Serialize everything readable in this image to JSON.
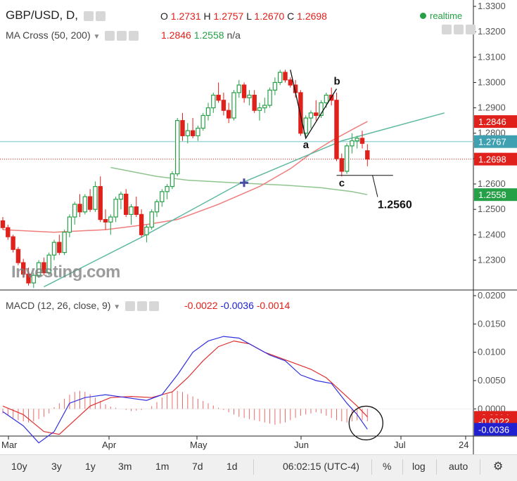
{
  "header": {
    "symbol": "GBP/USD, D,",
    "o_label": "O",
    "o": "1.2731",
    "h_label": "H",
    "h": "1.2757",
    "l_label": "L",
    "l": "1.2670",
    "c_label": "C",
    "c": "1.2698",
    "realtime": "realtime",
    "ma_label": "MA Cross (50, 200)",
    "ma50": "1.2846",
    "ma200": "1.2558",
    "ma_na": "n/a",
    "macd_label": "MACD (12, 26, close, 9)",
    "macd_hist": "-0.0022",
    "macd_line": "-0.0036",
    "macd_signal": "-0.0014"
  },
  "watermark": "Investing.com",
  "annotations": {
    "a": "a",
    "b": "b",
    "c": "c",
    "level": "1.2560"
  },
  "bottom": {
    "ranges": [
      "10y",
      "3y",
      "1y",
      "3m",
      "1m",
      "7d",
      "1d"
    ],
    "time": "06:02:15 (UTC-4)",
    "pct": "%",
    "log": "log",
    "auto": "auto"
  },
  "colors": {
    "up": "#26a046",
    "down": "#e0201b",
    "ma50": "#f07d7d",
    "ma200": "#90c490",
    "trend": "#5fb9a0",
    "macd": "#3030e0",
    "signal": "#e03030",
    "hline": "#9fd3da"
  },
  "chart_data": [
    {
      "type": "candlestick",
      "title": "GBP/USD, D",
      "x_ticks": [
        "Mar",
        "Apr",
        "May",
        "Jun",
        "Jul",
        "24"
      ],
      "y_ticks": [
        "1.3300",
        "1.3200",
        "1.3100",
        "1.3000",
        "1.2900",
        "1.2800",
        "1.2700",
        "1.2600",
        "1.2500",
        "1.2400",
        "1.2300"
      ],
      "ylim": [
        1.2185,
        1.3325
      ],
      "candles": [
        [
          1.2455,
          1.247,
          1.242,
          1.2428
        ],
        [
          1.2428,
          1.244,
          1.238,
          1.2392
        ],
        [
          1.2392,
          1.24,
          1.233,
          1.2342
        ],
        [
          1.2342,
          1.2352,
          1.228,
          1.229
        ],
        [
          1.229,
          1.2305,
          1.223,
          1.2245
        ],
        [
          1.2245,
          1.227,
          1.22,
          1.221
        ],
        [
          1.221,
          1.225,
          1.219,
          1.224
        ],
        [
          1.224,
          1.23,
          1.223,
          1.229
        ],
        [
          1.229,
          1.231,
          1.224,
          1.225
        ],
        [
          1.225,
          1.233,
          1.224,
          1.232
        ],
        [
          1.232,
          1.238,
          1.23,
          1.237
        ],
        [
          1.237,
          1.24,
          1.232,
          1.233
        ],
        [
          1.233,
          1.242,
          1.232,
          1.241
        ],
        [
          1.241,
          1.248,
          1.239,
          1.247
        ],
        [
          1.247,
          1.253,
          1.244,
          1.252
        ],
        [
          1.252,
          1.256,
          1.247,
          1.249
        ],
        [
          1.249,
          1.256,
          1.248,
          1.255
        ],
        [
          1.255,
          1.258,
          1.249,
          1.25
        ],
        [
          1.25,
          1.261,
          1.249,
          1.259
        ],
        [
          1.259,
          1.263,
          1.245,
          1.246
        ],
        [
          1.246,
          1.25,
          1.242,
          1.245
        ],
        [
          1.245,
          1.248,
          1.24,
          1.247
        ],
        [
          1.247,
          1.255,
          1.245,
          1.254
        ],
        [
          1.254,
          1.257,
          1.25,
          1.256
        ],
        [
          1.256,
          1.258,
          1.247,
          1.248
        ],
        [
          1.248,
          1.252,
          1.244,
          1.251
        ],
        [
          1.251,
          1.255,
          1.247,
          1.248
        ],
        [
          1.248,
          1.25,
          1.239,
          1.24
        ],
        [
          1.24,
          1.244,
          1.237,
          1.243
        ],
        [
          1.243,
          1.25,
          1.242,
          1.249
        ],
        [
          1.249,
          1.254,
          1.247,
          1.253
        ],
        [
          1.253,
          1.258,
          1.251,
          1.257
        ],
        [
          1.257,
          1.26,
          1.254,
          1.259
        ],
        [
          1.259,
          1.265,
          1.258,
          1.264
        ],
        [
          1.264,
          1.286,
          1.263,
          1.285
        ],
        [
          1.285,
          1.288,
          1.277,
          1.279
        ],
        [
          1.279,
          1.284,
          1.276,
          1.281
        ],
        [
          1.281,
          1.286,
          1.278,
          1.279
        ],
        [
          1.279,
          1.283,
          1.277,
          1.282
        ],
        [
          1.282,
          1.288,
          1.281,
          1.287
        ],
        [
          1.287,
          1.292,
          1.285,
          1.29
        ],
        [
          1.29,
          1.296,
          1.288,
          1.295
        ],
        [
          1.295,
          1.3,
          1.292,
          1.293
        ],
        [
          1.293,
          1.296,
          1.287,
          1.289
        ],
        [
          1.289,
          1.292,
          1.284,
          1.286
        ],
        [
          1.286,
          1.297,
          1.285,
          1.296
        ],
        [
          1.296,
          1.301,
          1.294,
          1.299
        ],
        [
          1.299,
          1.3,
          1.292,
          1.294
        ],
        [
          1.294,
          1.297,
          1.291,
          1.295
        ],
        [
          1.295,
          1.297,
          1.288,
          1.289
        ],
        [
          1.289,
          1.292,
          1.285,
          1.29
        ],
        [
          1.29,
          1.294,
          1.288,
          1.291
        ],
        [
          1.291,
          1.298,
          1.29,
          1.297
        ],
        [
          1.297,
          1.302,
          1.295,
          1.3
        ],
        [
          1.3,
          1.305,
          1.299,
          1.304
        ],
        [
          1.304,
          1.305,
          1.3,
          1.301
        ],
        [
          1.301,
          1.302,
          1.298,
          1.299
        ],
        [
          1.299,
          1.301,
          1.294,
          1.296
        ],
        [
          1.296,
          1.297,
          1.279,
          1.28
        ],
        [
          1.28,
          1.287,
          1.278,
          1.286
        ],
        [
          1.286,
          1.289,
          1.282,
          1.288
        ],
        [
          1.288,
          1.293,
          1.285,
          1.287
        ],
        [
          1.287,
          1.293,
          1.286,
          1.292
        ],
        [
          1.292,
          1.296,
          1.29,
          1.295
        ],
        [
          1.295,
          1.298,
          1.291,
          1.293
        ],
        [
          1.293,
          1.296,
          1.269,
          1.27
        ],
        [
          1.27,
          1.272,
          1.263,
          1.265
        ],
        [
          1.265,
          1.276,
          1.264,
          1.275
        ],
        [
          1.275,
          1.28,
          1.272,
          1.277
        ],
        [
          1.277,
          1.279,
          1.274,
          1.278
        ],
        [
          1.278,
          1.281,
          1.274,
          1.276
        ],
        [
          1.2731,
          1.2757,
          1.267,
          1.2698
        ]
      ],
      "ma50": [
        [
          0,
          1.242
        ],
        [
          10,
          1.241
        ],
        [
          20,
          1.242
        ],
        [
          28,
          1.244
        ],
        [
          34,
          1.246
        ],
        [
          42,
          1.252
        ],
        [
          50,
          1.259
        ],
        [
          56,
          1.266
        ],
        [
          60,
          1.272
        ],
        [
          64,
          1.277
        ],
        [
          69,
          1.2825
        ],
        [
          71,
          1.2846
        ]
      ],
      "ma200": [
        [
          21,
          1.2665
        ],
        [
          30,
          1.263
        ],
        [
          36,
          1.2615
        ],
        [
          45,
          1.2605
        ],
        [
          55,
          1.2595
        ],
        [
          62,
          1.2585
        ],
        [
          68,
          1.257
        ],
        [
          71,
          1.2558
        ]
      ],
      "trendline": [
        [
          8,
          1.2195
        ],
        [
          27,
          1.239
        ],
        [
          46,
          1.26
        ],
        [
          66,
          1.277
        ],
        [
          86,
          1.288
        ]
      ],
      "hlines": [
        {
          "value": 1.2767
        },
        {
          "value": 1.2698,
          "style": "dotted"
        }
      ],
      "support_level": 1.256,
      "price_labels": [
        {
          "value": 1.2846,
          "text": "1.2846",
          "color": "#e0201b"
        },
        {
          "value": 1.2767,
          "text": "1.2767",
          "color": "#3ea0b0"
        },
        {
          "value": 1.2698,
          "text": "1.2698",
          "color": "#e0201b"
        },
        {
          "value": 1.2558,
          "text": "1.2558",
          "color": "#26a046"
        }
      ]
    },
    {
      "type": "line",
      "title": "MACD (12, 26, close, 9)",
      "y_ticks": [
        "0.0200",
        "0.0150",
        "0.0100",
        "0.0050",
        "0.0000"
      ],
      "ylim": [
        -0.0048,
        0.021
      ],
      "series": [
        {
          "name": "MACD",
          "points": [
            [
              0,
              -0.0005
            ],
            [
              4,
              -0.003
            ],
            [
              7,
              -0.006
            ],
            [
              10,
              -0.004
            ],
            [
              13,
              0.001
            ],
            [
              16,
              0.002
            ],
            [
              20,
              0.0025
            ],
            [
              24,
              0.002
            ],
            [
              28,
              0.0015
            ],
            [
              31,
              0.0025
            ],
            [
              34,
              0.006
            ],
            [
              37,
              0.01
            ],
            [
              40,
              0.012
            ],
            [
              43,
              0.0128
            ],
            [
              46,
              0.0125
            ],
            [
              49,
              0.011
            ],
            [
              52,
              0.0095
            ],
            [
              55,
              0.0085
            ],
            [
              58,
              0.006
            ],
            [
              61,
              0.005
            ],
            [
              64,
              0.0045
            ],
            [
              67,
              0.001
            ],
            [
              69,
              -0.001
            ],
            [
              71,
              -0.0036
            ]
          ]
        },
        {
          "name": "Signal",
          "points": [
            [
              0,
              0.0005
            ],
            [
              4,
              -0.001
            ],
            [
              8,
              -0.004
            ],
            [
              11,
              -0.0045
            ],
            [
              14,
              -0.002
            ],
            [
              17,
              0.0005
            ],
            [
              21,
              0.002
            ],
            [
              25,
              0.0022
            ],
            [
              29,
              0.002
            ],
            [
              33,
              0.003
            ],
            [
              36,
              0.0055
            ],
            [
              39,
              0.0085
            ],
            [
              42,
              0.011
            ],
            [
              45,
              0.012
            ],
            [
              48,
              0.0115
            ],
            [
              51,
              0.01
            ],
            [
              54,
              0.009
            ],
            [
              57,
              0.008
            ],
            [
              60,
              0.007
            ],
            [
              63,
              0.0055
            ],
            [
              66,
              0.003
            ],
            [
              69,
              0.0005
            ],
            [
              71,
              -0.0014
            ]
          ]
        }
      ],
      "histogram": [
        -0.0008,
        -0.0012,
        -0.0016,
        -0.002,
        -0.0022,
        -0.0024,
        -0.0022,
        -0.0018,
        -0.0014,
        -0.0008,
        0.0003,
        0.001,
        0.0018,
        0.0025,
        0.003,
        0.0032,
        0.003,
        0.0026,
        0.002,
        0.0014,
        0.0008,
        0.0004,
        0.0002,
        0.0,
        -0.0002,
        -0.0004,
        -0.0003,
        -0.0002,
        0.0,
        0.0005,
        0.0012,
        0.002,
        0.0026,
        0.003,
        0.0032,
        0.003,
        0.0026,
        0.0022,
        0.0018,
        0.0014,
        0.001,
        0.0006,
        0.0002,
        -0.0002,
        -0.0006,
        -0.001,
        -0.0014,
        -0.0016,
        -0.0018,
        -0.002,
        -0.0022,
        -0.0024,
        -0.0026,
        -0.0028,
        -0.0026,
        -0.0024,
        -0.002,
        -0.0016,
        -0.0012,
        -0.001,
        -0.0008,
        -0.0006,
        -0.0008,
        -0.0012,
        -0.0016,
        -0.002,
        -0.0022,
        -0.0024,
        -0.0022,
        -0.002,
        -0.002,
        -0.0022
      ],
      "price_labels": [
        {
          "value": -0.0014,
          "text": "-0.0014",
          "color": "#e0201b"
        },
        {
          "value": -0.0022,
          "text": "-0.0022",
          "color": "#e0201b"
        },
        {
          "value": -0.0036,
          "text": "-0.0036",
          "color": "#2020d0"
        }
      ]
    }
  ]
}
